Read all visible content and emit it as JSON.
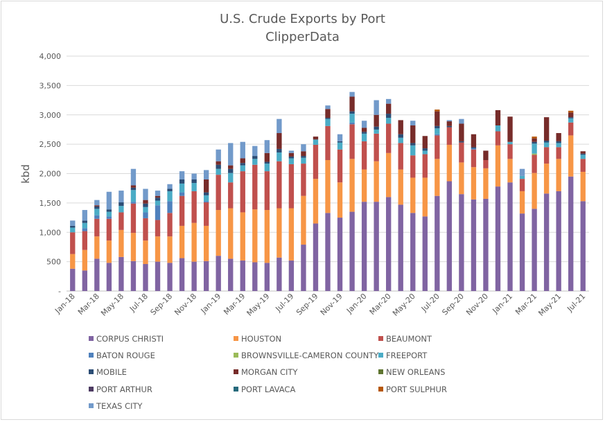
{
  "chart_data": {
    "type": "bar",
    "stacked": true,
    "title": "U.S. Crude Exports by Port",
    "subtitle": "ClipperData",
    "ylabel": "kbd",
    "ylim": [
      0,
      4000
    ],
    "yticks": [
      "-",
      "500",
      "1,000",
      "1,500",
      "2,000",
      "2,500",
      "3,000",
      "3,500",
      "4,000"
    ],
    "grid": true,
    "legend": "bottom",
    "categories": [
      "Jan-18",
      "Feb-18",
      "Mar-18",
      "Apr-18",
      "May-18",
      "Jun-18",
      "Jul-18",
      "Aug-18",
      "Sep-18",
      "Oct-18",
      "Nov-18",
      "Dec-18",
      "Jan-19",
      "Feb-19",
      "Mar-19",
      "Apr-19",
      "May-19",
      "Jun-19",
      "Jul-19",
      "Aug-19",
      "Sep-19",
      "Oct-19",
      "Nov-19",
      "Dec-19",
      "Jan-20",
      "Feb-20",
      "Mar-20",
      "Apr-20",
      "May-20",
      "Jun-20",
      "Jul-20",
      "Aug-20",
      "Sep-20",
      "Oct-20",
      "Nov-20",
      "Dec-20",
      "Jan-21",
      "Feb-21",
      "Mar-21",
      "Apr-21",
      "May-21",
      "Jun-21",
      "Jul-21"
    ],
    "xtick_labels": [
      "Jan-18",
      "Mar-18",
      "May-18",
      "Jul-18",
      "Sep-18",
      "Nov-18",
      "Jan-19",
      "Mar-19",
      "May-19",
      "Jul-19",
      "Sep-19",
      "Nov-19",
      "Jan-20",
      "Mar-20",
      "May-20",
      "Jul-20",
      "Sep-20",
      "Nov-20",
      "Jan-21",
      "Mar-21",
      "May-21",
      "Jul-21"
    ],
    "series": [
      {
        "name": "CORPUS CHRISTI",
        "color": "#8064a2",
        "values": [
          380,
          350,
          550,
          480,
          580,
          510,
          460,
          500,
          480,
          560,
          500,
          510,
          600,
          550,
          520,
          490,
          480,
          570,
          520,
          790,
          1150,
          1330,
          1250,
          1350,
          1520,
          1520,
          1600,
          1470,
          1330,
          1270,
          1620,
          1870,
          1650,
          1560,
          1570,
          1780,
          1850,
          1320,
          1400,
          1660,
          1700,
          1950,
          1530
        ]
      },
      {
        "name": "HOUSTON",
        "color": "#f79646",
        "values": [
          250,
          350,
          380,
          380,
          460,
          480,
          400,
          430,
          450,
          550,
          660,
          600,
          780,
          860,
          820,
          900,
          900,
          840,
          890,
          830,
          760,
          900,
          600,
          900,
          550,
          690,
          750,
          600,
          600,
          660,
          630,
          620,
          540,
          550,
          520,
          700,
          400,
          380,
          610,
          510,
          550,
          700,
          500
        ]
      },
      {
        "name": "BEAUMONT",
        "color": "#c0504d",
        "values": [
          370,
          320,
          300,
          370,
          300,
          500,
          380,
          280,
          400,
          510,
          540,
          400,
          600,
          440,
          700,
          760,
          660,
          800,
          750,
          550,
          580,
          580,
          560,
          590,
          480,
          470,
          500,
          450,
          380,
          400,
          400,
          300,
          340,
          300,
          140,
          240,
          250,
          210,
          310,
          280,
          200,
          220,
          220
        ]
      },
      {
        "name": "BATON ROUGE",
        "color": "#4f81bd",
        "values": [
          0,
          50,
          60,
          40,
          0,
          30,
          100,
          250,
          200,
          60,
          0,
          20,
          0,
          0,
          0,
          0,
          0,
          0,
          0,
          0,
          0,
          0,
          0,
          30,
          0,
          0,
          0,
          0,
          0,
          0,
          20,
          0,
          0,
          20,
          0,
          0,
          0,
          0,
          0,
          0,
          0,
          0,
          0
        ]
      },
      {
        "name": "BROWNSVILLE-CAMERON COUNTY",
        "color": "#9bbb59",
        "values": [
          0,
          0,
          0,
          0,
          0,
          0,
          0,
          0,
          0,
          0,
          0,
          0,
          0,
          0,
          0,
          0,
          0,
          0,
          0,
          0,
          0,
          0,
          0,
          0,
          0,
          0,
          0,
          0,
          0,
          0,
          0,
          0,
          0,
          0,
          0,
          0,
          0,
          0,
          20,
          0,
          0,
          0,
          0
        ]
      },
      {
        "name": "FREEPORT",
        "color": "#4bacc6",
        "values": [
          80,
          90,
          110,
          80,
          110,
          200,
          90,
          80,
          170,
          150,
          140,
          100,
          100,
          160,
          100,
          100,
          130,
          150,
          100,
          100,
          90,
          120,
          120,
          150,
          130,
          70,
          100,
          90,
          170,
          60,
          100,
          0,
          0,
          0,
          0,
          100,
          40,
          50,
          170,
          80,
          70,
          70,
          70
        ]
      },
      {
        "name": "MOBILE",
        "color": "#2c4d75",
        "values": [
          30,
          40,
          40,
          40,
          60,
          40,
          60,
          50,
          40,
          70,
          60,
          50,
          70,
          70,
          40,
          50,
          30,
          60,
          30,
          30,
          0,
          20,
          20,
          40,
          30,
          50,
          70,
          60,
          40,
          40,
          40,
          20,
          20,
          20,
          0,
          0,
          0,
          0,
          30,
          30,
          30,
          20,
          20
        ]
      },
      {
        "name": "MORGAN CITY",
        "color": "#772c2a",
        "values": [
          0,
          0,
          20,
          0,
          0,
          40,
          60,
          30,
          0,
          0,
          0,
          220,
          60,
          60,
          80,
          0,
          150,
          270,
          60,
          80,
          50,
          150,
          0,
          250,
          70,
          200,
          170,
          240,
          300,
          210,
          250,
          80,
          300,
          220,
          160,
          260,
          430,
          0,
          60,
          400,
          140,
          80,
          40
        ]
      },
      {
        "name": "NEW ORLEANS",
        "color": "#5f7530",
        "values": [
          0,
          0,
          0,
          0,
          0,
          0,
          0,
          0,
          0,
          0,
          0,
          0,
          0,
          0,
          0,
          0,
          0,
          0,
          0,
          0,
          0,
          0,
          0,
          0,
          0,
          0,
          0,
          0,
          0,
          0,
          0,
          0,
          0,
          0,
          0,
          0,
          0,
          0,
          0,
          0,
          0,
          0,
          0
        ]
      },
      {
        "name": "PORT ARTHUR",
        "color": "#4d3b62",
        "values": [
          0,
          0,
          0,
          0,
          0,
          0,
          0,
          0,
          0,
          0,
          0,
          0,
          0,
          0,
          0,
          0,
          0,
          0,
          0,
          0,
          0,
          0,
          0,
          0,
          0,
          0,
          0,
          0,
          0,
          0,
          0,
          0,
          0,
          0,
          0,
          0,
          0,
          0,
          0,
          0,
          0,
          0,
          0
        ]
      },
      {
        "name": "PORT LAVACA",
        "color": "#276a7c",
        "values": [
          0,
          0,
          0,
          0,
          0,
          0,
          0,
          0,
          0,
          0,
          0,
          0,
          0,
          0,
          0,
          0,
          0,
          0,
          0,
          0,
          0,
          0,
          0,
          0,
          0,
          0,
          0,
          0,
          0,
          0,
          0,
          0,
          0,
          0,
          0,
          0,
          0,
          0,
          0,
          0,
          0,
          0,
          0
        ]
      },
      {
        "name": "PORT SULPHUR",
        "color": "#b65708",
        "values": [
          0,
          0,
          0,
          0,
          0,
          0,
          0,
          0,
          0,
          0,
          0,
          0,
          0,
          0,
          0,
          0,
          0,
          0,
          0,
          0,
          0,
          0,
          0,
          0,
          0,
          0,
          0,
          0,
          0,
          0,
          30,
          0,
          0,
          0,
          0,
          0,
          0,
          0,
          30,
          0,
          0,
          30,
          0
        ]
      },
      {
        "name": "TEXAS CITY",
        "color": "#729aca",
        "values": [
          90,
          180,
          90,
          300,
          200,
          280,
          190,
          90,
          80,
          140,
          100,
          160,
          200,
          380,
          280,
          170,
          220,
          240,
          40,
          120,
          0,
          60,
          120,
          80,
          120,
          250,
          80,
          0,
          80,
          0,
          0,
          20,
          80,
          0,
          0,
          0,
          0,
          120,
          0,
          0,
          0,
          0,
          0
        ]
      }
    ]
  }
}
